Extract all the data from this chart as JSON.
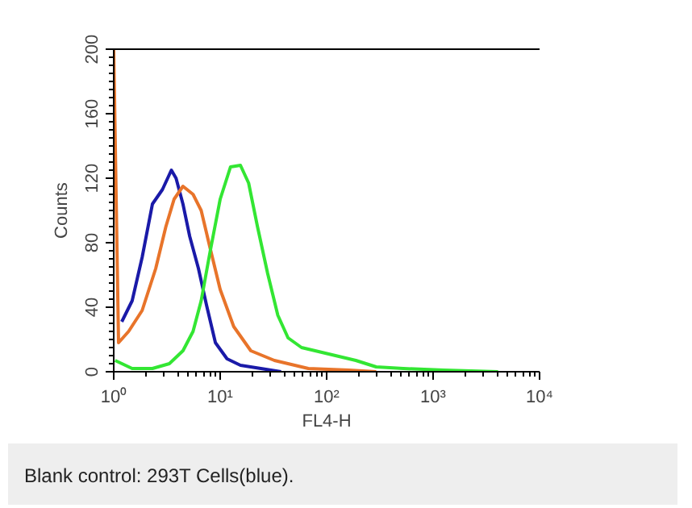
{
  "chart_data": {
    "type": "line",
    "xlabel": "FL4-H",
    "ylabel": "Counts",
    "log": "x",
    "grid": false,
    "marker": "none",
    "line_style": "solid",
    "xlim": [
      1,
      10000
    ],
    "xticks": [
      {
        "value": 1,
        "label": "10⁰"
      },
      {
        "value": 10,
        "label": "10¹"
      },
      {
        "value": 100,
        "label": "10²"
      },
      {
        "value": 1000,
        "label": "10³"
      },
      {
        "value": 10000,
        "label": "10⁴"
      }
    ],
    "ylim": [
      0,
      200
    ],
    "yticks": [
      0,
      40,
      80,
      120,
      160,
      200
    ],
    "annotations": [
      "Blank control: 293T Cells(blue)."
    ],
    "series": [
      {
        "color": "#1a1aa8",
        "x": [
          1.19,
          1.49,
          1.85,
          2.31,
          2.87,
          3.48,
          3.85,
          4.47,
          5.17,
          6.25,
          7.46,
          9.02,
          11.6,
          15.5,
          24.1,
          37.3
        ],
        "values": [
          31,
          44,
          71,
          104,
          113,
          125,
          120,
          104,
          84,
          64,
          41,
          18,
          8,
          4,
          2,
          0
        ]
      },
      {
        "color": "#e8742a",
        "x": [
          1.0,
          1.11,
          1.38,
          1.85,
          2.48,
          3.09,
          3.69,
          4.47,
          5.56,
          6.63,
          8.02,
          10.0,
          13.4,
          19.4,
          32.3,
          67.3,
          162,
          292
        ],
        "values": [
          200,
          18,
          25,
          38,
          64,
          90,
          107,
          115,
          110,
          100,
          77,
          51,
          28,
          13,
          7,
          2,
          1,
          0
        ]
      },
      {
        "color": "#33e633",
        "x": [
          1.03,
          1.49,
          2.31,
          3.33,
          4.47,
          5.56,
          6.63,
          8.02,
          10.0,
          12.5,
          15.5,
          18.5,
          22.4,
          27.9,
          34.8,
          43.4,
          58.1,
          78,
          121,
          188,
          292,
          525,
          1259,
          4074
        ],
        "values": [
          7,
          2,
          2,
          5,
          13,
          25,
          44,
          74,
          107,
          127,
          128,
          117,
          90,
          61,
          35,
          21,
          15,
          13,
          10,
          7,
          3,
          2,
          1,
          0
        ]
      }
    ]
  }
}
